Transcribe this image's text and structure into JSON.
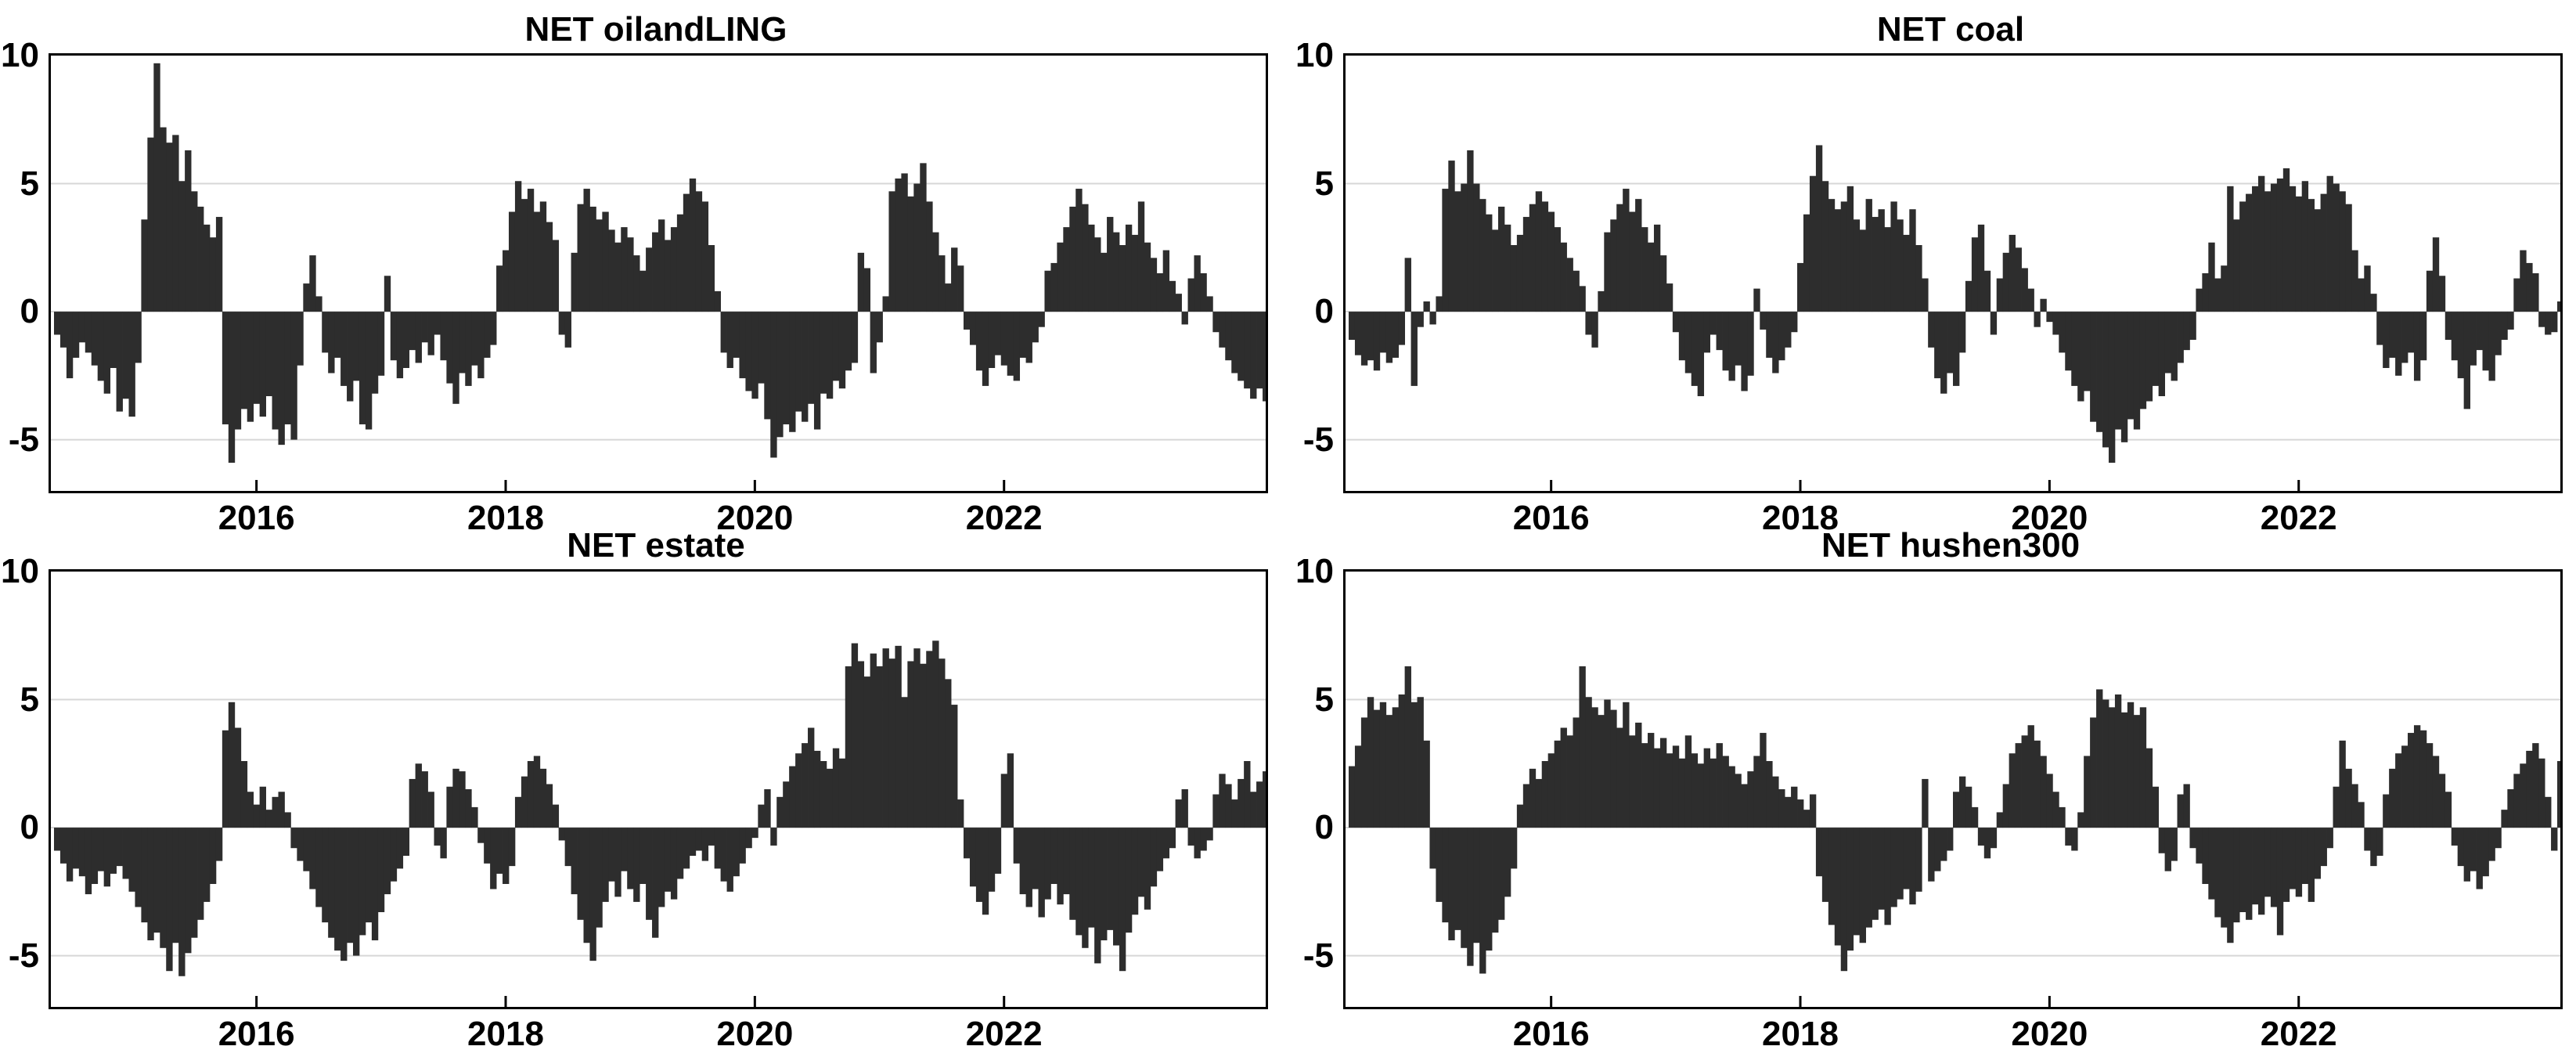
{
  "figure": {
    "background": "#ffffff"
  },
  "style": {
    "bar_color": "#2d2d2d",
    "frame_color": "#000000",
    "grid_color": "#d7d7d7",
    "label_color": "#000000"
  },
  "axes": {
    "ylim": [
      -7,
      10
    ],
    "xlim": [
      2014.35,
      2024.1
    ],
    "ytick_labels": [
      "10",
      "5",
      "0",
      "-5"
    ],
    "ytick_values": [
      10,
      5,
      0,
      -5
    ],
    "gridline_values": [
      5,
      0,
      -5
    ],
    "xtick_labels": [
      "2016",
      "2018",
      "2020",
      "2022"
    ],
    "xtick_years": [
      2016,
      2018,
      2020,
      2022
    ],
    "grid": "on",
    "legend": "none"
  },
  "chart_data": [
    {
      "type": "bar",
      "title": "NET oilandLING",
      "xlabel": "",
      "ylabel": "",
      "x_start": 2014.4,
      "x_step": 0.05,
      "ylim": [
        -7,
        10
      ],
      "values": [
        -0.9,
        -1.4,
        -2.6,
        -1.8,
        -1.2,
        -1.6,
        -2.1,
        -2.7,
        -3.2,
        -2.2,
        -3.9,
        -3.4,
        -4.1,
        -2.0,
        3.6,
        6.8,
        9.7,
        7.2,
        6.6,
        6.9,
        5.1,
        6.3,
        4.7,
        4.1,
        3.4,
        2.9,
        3.7,
        -4.4,
        -5.9,
        -4.6,
        -3.8,
        -4.3,
        -3.6,
        -4.1,
        -3.3,
        -4.6,
        -5.2,
        -4.4,
        -5.0,
        -2.1,
        1.1,
        2.2,
        0.6,
        -1.6,
        -2.4,
        -1.8,
        -2.9,
        -3.5,
        -2.7,
        -4.4,
        -4.6,
        -3.2,
        -2.5,
        1.4,
        -1.9,
        -2.6,
        -2.2,
        -1.5,
        -2.0,
        -1.2,
        -1.7,
        -0.9,
        -1.9,
        -2.8,
        -3.6,
        -2.4,
        -2.9,
        -2.1,
        -2.6,
        -1.8,
        -1.3,
        1.8,
        2.4,
        3.9,
        5.1,
        4.4,
        4.8,
        3.9,
        4.3,
        3.5,
        2.8,
        -0.9,
        -1.4,
        2.3,
        4.2,
        4.8,
        4.1,
        3.6,
        3.9,
        3.2,
        2.7,
        3.3,
        2.9,
        2.2,
        1.6,
        2.5,
        3.1,
        3.6,
        2.8,
        3.3,
        3.8,
        4.6,
        5.2,
        4.7,
        4.3,
        2.6,
        0.8,
        -1.6,
        -2.2,
        -1.8,
        -2.6,
        -3.1,
        -3.4,
        -2.8,
        -4.2,
        -5.7,
        -4.9,
        -4.4,
        -4.7,
        -3.9,
        -4.3,
        -3.6,
        -4.6,
        -3.2,
        -3.4,
        -2.7,
        -3.0,
        -2.3,
        -2.0,
        2.3,
        1.7,
        -2.4,
        -1.2,
        0.6,
        4.7,
        5.2,
        5.4,
        4.5,
        5.0,
        5.8,
        4.3,
        3.1,
        2.2,
        1.1,
        2.5,
        1.8,
        -0.7,
        -1.3,
        -2.3,
        -2.9,
        -2.2,
        -1.7,
        -2.1,
        -2.5,
        -2.7,
        -1.8,
        -2.0,
        -1.2,
        -0.6,
        1.6,
        1.9,
        2.7,
        3.3,
        4.1,
        4.8,
        4.2,
        3.4,
        2.9,
        2.3,
        3.7,
        3.1,
        2.6,
        3.4,
        3.0,
        4.3,
        2.7,
        2.1,
        1.5,
        2.4,
        1.2,
        0.7,
        -0.5,
        1.3,
        2.2,
        1.5,
        0.6,
        -0.8,
        -1.4,
        -1.9,
        -2.4,
        -2.7,
        -3.0,
        -3.4,
        -3.0,
        -3.5
      ]
    },
    {
      "type": "bar",
      "title": "NET coal",
      "xlabel": "",
      "ylabel": "",
      "x_start": 2014.4,
      "x_step": 0.05,
      "ylim": [
        -7,
        10
      ],
      "values": [
        -1.1,
        -1.7,
        -2.1,
        -1.9,
        -2.3,
        -1.6,
        -2.0,
        -1.8,
        -1.3,
        2.1,
        -2.9,
        -0.6,
        0.4,
        -0.5,
        0.6,
        4.8,
        5.9,
        4.7,
        5.0,
        6.3,
        5.0,
        4.4,
        3.8,
        3.2,
        4.1,
        3.4,
        2.6,
        3.0,
        3.7,
        4.2,
        4.7,
        4.3,
        3.9,
        3.3,
        2.7,
        2.1,
        1.6,
        1.0,
        -0.9,
        -1.4,
        0.8,
        3.1,
        3.6,
        4.2,
        4.8,
        3.9,
        4.4,
        3.3,
        2.7,
        3.4,
        2.2,
        1.1,
        -0.8,
        -1.9,
        -2.4,
        -2.9,
        -3.3,
        -1.6,
        -0.9,
        -1.5,
        -2.3,
        -2.7,
        -2.1,
        -3.1,
        -2.5,
        0.9,
        -0.7,
        -1.8,
        -2.4,
        -1.9,
        -1.4,
        -0.8,
        1.9,
        3.8,
        5.3,
        6.5,
        5.1,
        4.4,
        4.0,
        4.3,
        4.9,
        3.6,
        3.2,
        4.4,
        3.7,
        4.0,
        3.3,
        4.3,
        3.6,
        3.0,
        4.0,
        2.6,
        1.3,
        -1.4,
        -2.6,
        -3.2,
        -2.4,
        -2.9,
        -1.6,
        1.2,
        2.9,
        3.4,
        1.6,
        -0.9,
        1.3,
        2.3,
        3.0,
        2.5,
        1.7,
        0.9,
        -0.6,
        0.5,
        -0.4,
        -0.9,
        -1.6,
        -2.3,
        -2.9,
        -3.5,
        -3.1,
        -4.3,
        -4.7,
        -5.3,
        -5.9,
        -4.6,
        -5.1,
        -4.2,
        -4.6,
        -3.8,
        -3.5,
        -2.9,
        -3.3,
        -2.4,
        -2.7,
        -2.0,
        -1.5,
        -1.1,
        0.9,
        1.5,
        2.7,
        1.3,
        1.8,
        4.9,
        3.6,
        4.3,
        4.6,
        4.9,
        5.3,
        4.7,
        5.0,
        5.2,
        5.6,
        4.9,
        4.5,
        5.1,
        4.4,
        4.0,
        4.6,
        5.3,
        5.0,
        4.7,
        4.2,
        2.4,
        1.3,
        1.8,
        0.7,
        -1.3,
        -2.2,
        -1.8,
        -2.5,
        -2.0,
        -1.6,
        -2.7,
        -1.9,
        1.6,
        2.9,
        1.4,
        -1.1,
        -1.9,
        -2.6,
        -3.8,
        -2.1,
        -1.5,
        -2.3,
        -2.7,
        -1.7,
        -1.1,
        -0.7,
        1.3,
        2.4,
        1.9,
        1.5,
        -0.6,
        -0.9,
        -0.8,
        0.4
      ]
    },
    {
      "type": "bar",
      "title": "NET estate",
      "xlabel": "",
      "ylabel": "",
      "x_start": 2014.4,
      "x_step": 0.05,
      "ylim": [
        -7,
        10
      ],
      "values": [
        -0.9,
        -1.4,
        -2.1,
        -1.6,
        -1.9,
        -2.6,
        -2.2,
        -1.7,
        -2.3,
        -1.8,
        -1.5,
        -2.0,
        -2.5,
        -3.1,
        -3.7,
        -4.4,
        -4.1,
        -4.7,
        -5.6,
        -4.5,
        -5.8,
        -4.9,
        -4.3,
        -3.6,
        -2.9,
        -2.2,
        -1.3,
        3.8,
        4.9,
        3.9,
        2.6,
        1.4,
        0.9,
        1.6,
        0.7,
        1.2,
        1.4,
        0.6,
        -0.8,
        -1.3,
        -1.7,
        -2.4,
        -3.1,
        -3.7,
        -4.3,
        -4.8,
        -5.2,
        -4.5,
        -5.0,
        -4.2,
        -3.7,
        -4.4,
        -3.3,
        -2.6,
        -2.1,
        -1.6,
        -1.1,
        1.9,
        2.5,
        2.2,
        1.4,
        -0.7,
        -1.2,
        1.6,
        2.3,
        2.2,
        1.5,
        0.8,
        -0.6,
        -1.4,
        -2.4,
        -1.8,
        -2.2,
        -1.5,
        1.2,
        2.0,
        2.6,
        2.8,
        2.3,
        1.7,
        0.9,
        -0.5,
        -1.5,
        -2.6,
        -3.6,
        -4.5,
        -5.2,
        -3.9,
        -2.9,
        -2.1,
        -2.7,
        -1.7,
        -2.4,
        -2.9,
        -2.2,
        -3.6,
        -4.3,
        -3.1,
        -2.5,
        -2.8,
        -2.0,
        -1.6,
        -1.1,
        -0.9,
        -1.3,
        -0.7,
        -1.6,
        -2.1,
        -2.5,
        -1.9,
        -1.4,
        -0.8,
        -0.4,
        0.9,
        1.5,
        -0.7,
        1.2,
        1.8,
        2.4,
        2.9,
        3.3,
        3.9,
        3.0,
        2.6,
        2.3,
        3.1,
        2.7,
        6.3,
        7.2,
        6.5,
        5.9,
        6.8,
        6.3,
        7.0,
        6.6,
        7.1,
        5.1,
        6.5,
        7.0,
        6.4,
        6.9,
        7.3,
        6.6,
        5.8,
        4.8,
        1.1,
        -1.2,
        -2.3,
        -2.9,
        -3.4,
        -2.5,
        -1.8,
        2.1,
        2.9,
        -1.4,
        -2.6,
        -3.1,
        -2.4,
        -3.5,
        -2.8,
        -2.2,
        -3.0,
        -2.6,
        -3.6,
        -4.2,
        -4.7,
        -3.9,
        -5.3,
        -4.4,
        -4.0,
        -4.6,
        -5.6,
        -4.1,
        -3.4,
        -2.7,
        -3.2,
        -2.3,
        -1.7,
        -1.2,
        -0.8,
        1.1,
        1.5,
        -0.7,
        -1.2,
        -0.9,
        -0.5,
        1.3,
        2.1,
        1.7,
        1.1,
        1.9,
        2.6,
        1.4,
        1.8,
        2.2
      ]
    },
    {
      "type": "bar",
      "title": "NET hushen300",
      "xlabel": "",
      "ylabel": "",
      "x_start": 2014.4,
      "x_step": 0.05,
      "ylim": [
        -7,
        10
      ],
      "values": [
        2.4,
        3.2,
        4.3,
        5.1,
        4.6,
        4.9,
        4.4,
        4.7,
        5.2,
        6.3,
        4.9,
        5.1,
        3.4,
        -1.6,
        -2.9,
        -3.7,
        -4.4,
        -4.0,
        -4.7,
        -5.4,
        -4.5,
        -5.7,
        -4.8,
        -4.1,
        -3.6,
        -2.7,
        -1.6,
        0.9,
        1.7,
        2.3,
        1.9,
        2.6,
        2.9,
        3.4,
        3.9,
        3.6,
        4.3,
        6.3,
        5.1,
        4.7,
        4.4,
        5.0,
        4.6,
        3.9,
        4.9,
        3.6,
        4.1,
        3.3,
        3.7,
        3.1,
        3.5,
        2.9,
        3.2,
        2.7,
        3.6,
        2.9,
        2.5,
        3.1,
        2.7,
        3.3,
        2.8,
        2.4,
        2.1,
        1.7,
        2.2,
        2.8,
        3.7,
        2.6,
        2.0,
        1.5,
        1.2,
        1.6,
        1.1,
        0.7,
        1.3,
        -1.9,
        -2.9,
        -3.8,
        -4.6,
        -5.6,
        -4.8,
        -4.2,
        -4.5,
        -3.9,
        -3.6,
        -3.2,
        -3.8,
        -3.1,
        -2.8,
        -2.4,
        -3.0,
        -2.5,
        1.9,
        -2.1,
        -1.7,
        -1.3,
        -0.9,
        1.4,
        2.0,
        1.6,
        0.8,
        -0.7,
        -1.2,
        -0.8,
        0.6,
        1.7,
        2.9,
        3.3,
        3.6,
        4.0,
        3.4,
        2.8,
        2.1,
        1.4,
        0.8,
        -0.7,
        -0.9,
        0.6,
        2.8,
        4.3,
        5.4,
        5.0,
        4.7,
        5.2,
        4.5,
        4.9,
        4.4,
        4.7,
        3.1,
        1.6,
        -1.0,
        -1.7,
        -1.3,
        1.3,
        1.7,
        -0.8,
        -1.4,
        -2.2,
        -2.8,
        -3.5,
        -3.9,
        -4.5,
        -3.7,
        -3.3,
        -3.6,
        -3.0,
        -3.4,
        -2.7,
        -3.1,
        -4.2,
        -2.9,
        -2.4,
        -2.7,
        -2.2,
        -2.9,
        -2.0,
        -1.5,
        -0.8,
        1.6,
        3.4,
        2.3,
        1.7,
        1.0,
        -0.9,
        -1.5,
        -1.1,
        1.3,
        2.3,
        2.9,
        3.2,
        3.7,
        4.0,
        3.8,
        3.3,
        2.8,
        2.1,
        1.4,
        -0.7,
        -1.5,
        -2.1,
        -1.7,
        -2.4,
        -1.9,
        -1.3,
        -0.8,
        0.7,
        1.5,
        2.1,
        2.5,
        3.0,
        3.3,
        2.7,
        1.2,
        -0.9,
        2.6
      ]
    }
  ]
}
